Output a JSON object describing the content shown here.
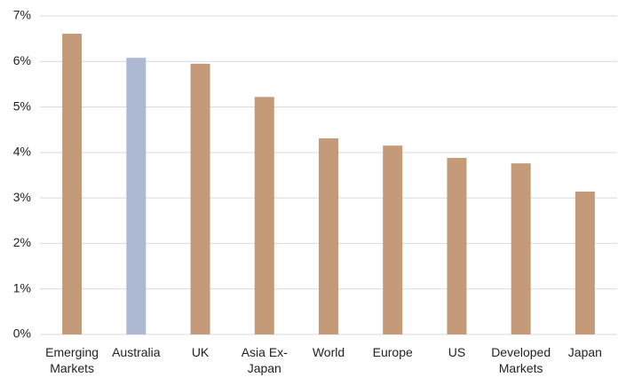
{
  "chart_data": {
    "type": "bar",
    "categories": [
      "Emerging Markets",
      "Australia",
      "UK",
      "Asia Ex-Japan",
      "World",
      "Europe",
      "US",
      "Developed Markets",
      "Japan"
    ],
    "values": [
      6.61,
      6.08,
      5.95,
      5.22,
      4.31,
      4.15,
      3.88,
      3.76,
      3.14
    ],
    "colors": [
      "#c49a78",
      "#adb9d3",
      "#c49a78",
      "#c49a78",
      "#c49a78",
      "#c49a78",
      "#c49a78",
      "#c49a78",
      "#c49a78"
    ],
    "ylim": [
      0,
      7
    ],
    "yticks": [
      {
        "value": 0,
        "label": "0%"
      },
      {
        "value": 1,
        "label": "1%"
      },
      {
        "value": 2,
        "label": "2%"
      },
      {
        "value": 3,
        "label": "3%"
      },
      {
        "value": 4,
        "label": "4%"
      },
      {
        "value": 5,
        "label": "5%"
      },
      {
        "value": 6,
        "label": "6%"
      },
      {
        "value": 7,
        "label": "7%"
      }
    ],
    "grid": true
  }
}
